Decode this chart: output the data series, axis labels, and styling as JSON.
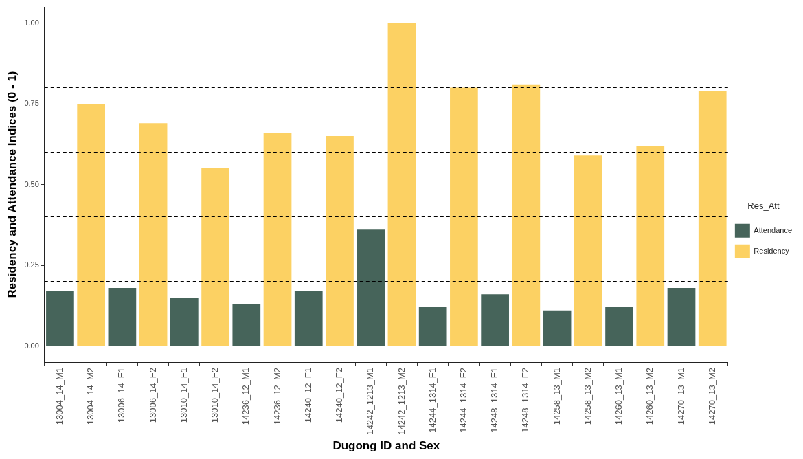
{
  "chart_data": {
    "type": "bar",
    "xlabel": "Dugong ID and Sex",
    "ylabel": "Residency and Attendance Indices (0 - 1)",
    "legend_title": "Res_Att",
    "legend": "right",
    "grid": false,
    "categories": [
      "13004_14_M1",
      "13004_14_M2",
      "13006_14_F1",
      "13006_14_F2",
      "13010_14_F1",
      "13010_14_F2",
      "14236_12_M1",
      "14236_12_M2",
      "14240_12_F1",
      "14240_12_F2",
      "14242_1213_M1",
      "14242_1213_M2",
      "14244_1314_F1",
      "14244_1314_F2",
      "14248_1314_F1",
      "14248_1314_F2",
      "14258_13_M1",
      "14258_13_M2",
      "14260_13_M1",
      "14260_13_M2",
      "14270_13_M1",
      "14270_13_M2"
    ],
    "series": [
      {
        "name": "Attendance",
        "color": "#46645a",
        "values": [
          0.17,
          null,
          0.18,
          null,
          0.15,
          null,
          0.13,
          null,
          0.17,
          null,
          0.36,
          null,
          0.12,
          null,
          0.16,
          null,
          0.11,
          null,
          0.12,
          null,
          0.18,
          null
        ]
      },
      {
        "name": "Residency",
        "color": "#fcd163",
        "values": [
          null,
          0.75,
          null,
          0.69,
          null,
          0.55,
          null,
          0.66,
          null,
          0.65,
          null,
          1.0,
          null,
          0.8,
          null,
          0.81,
          null,
          0.59,
          null,
          0.62,
          null,
          0.79
        ]
      }
    ],
    "ylim": [
      -0.05,
      1.05
    ],
    "yticks": [
      {
        "value": 0,
        "label": "0.00"
      },
      {
        "value": 0.25,
        "label": "0.25"
      },
      {
        "value": 0.5,
        "label": "0.50"
      },
      {
        "value": 0.75,
        "label": "0.75"
      },
      {
        "value": 1,
        "label": "1.00"
      }
    ],
    "ref_lines": [
      {
        "axis": "y",
        "value": 0.2,
        "color": "#000000",
        "line_style": "dashed"
      },
      {
        "axis": "y",
        "value": 0.4,
        "color": "#000000",
        "line_style": "dashed"
      },
      {
        "axis": "y",
        "value": 0.6,
        "color": "#000000",
        "line_style": "dashed"
      },
      {
        "axis": "y",
        "value": 0.8,
        "color": "#000000",
        "line_style": "dashed"
      },
      {
        "axis": "y",
        "value": 1.0,
        "color": "#000000",
        "line_style": "dashed"
      }
    ]
  }
}
